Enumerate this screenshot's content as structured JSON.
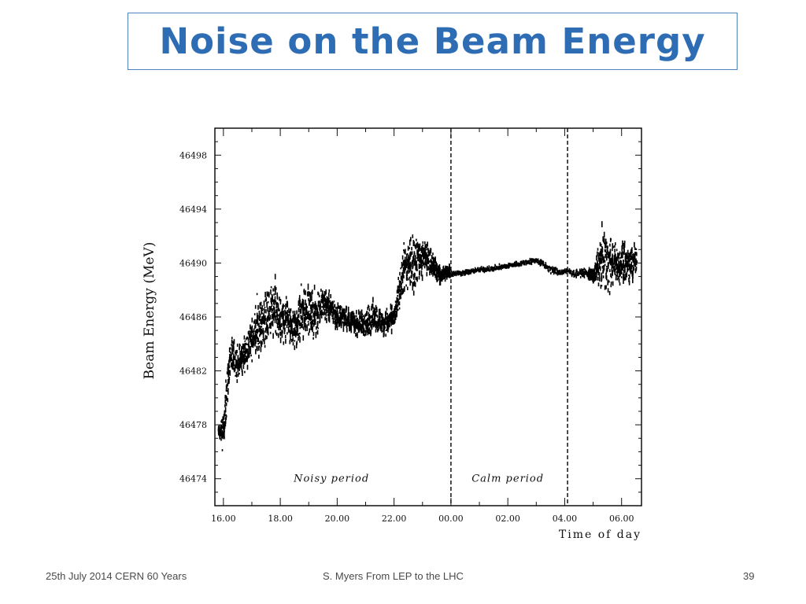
{
  "slide": {
    "title": "Noise on the Beam Energy",
    "footer_left": "25th July 2014 CERN 60 Years",
    "footer_center": "S. Myers From LEP to the LHC",
    "slide_number": "39",
    "title_color": "#2e6db4",
    "title_border_color": "#4f81bd"
  },
  "chart_data": {
    "type": "scatter",
    "title": "",
    "xlabel": "Time of day",
    "ylabel": "Beam Energy (MeV)",
    "x_tick_labels": [
      "16.00",
      "18.00",
      "20.00",
      "22.00",
      "00.00",
      "02.00",
      "04.00",
      "06.00"
    ],
    "y_tick_labels": [
      "46474",
      "46478",
      "46482",
      "46486",
      "46490",
      "46494",
      "46498"
    ],
    "y_ticks": [
      46474,
      46478,
      46482,
      46486,
      46490,
      46494,
      46498
    ],
    "ylim": [
      46472,
      46500
    ],
    "xlim_hours": [
      15.7,
      30.7
    ],
    "grid": false,
    "annotations": [
      {
        "label": "Noisy period",
        "x_hours": 19.8,
        "y": 46474
      },
      {
        "label": "Calm period",
        "x_hours": 26.0,
        "y": 46474
      }
    ],
    "period_boundaries_hours": [
      24.0,
      28.1
    ],
    "series": [
      {
        "x_hours": [
          15.8,
          16.0,
          16.2,
          16.5,
          16.8,
          17.0,
          17.2,
          17.5,
          17.8,
          18.0,
          18.2,
          18.5,
          18.8,
          19.0,
          19.2,
          19.5,
          19.8,
          20.0,
          20.3,
          20.6,
          21.0,
          21.3,
          21.6,
          22.0,
          22.3,
          22.6,
          23.0,
          23.3,
          23.6,
          23.9,
          24.0,
          24.5,
          25.0,
          25.5,
          26.0,
          26.5,
          27.0,
          27.5,
          27.8,
          28.1,
          28.3,
          28.6,
          29.0,
          29.3,
          29.6,
          29.9,
          30.2,
          30.5
        ],
        "y": [
          46477.5,
          46477.5,
          46483.0,
          46482.5,
          46483.5,
          46484.5,
          46485.0,
          46486.0,
          46486.5,
          46485.5,
          46486.0,
          46485.0,
          46486.5,
          46486.5,
          46486.0,
          46487.0,
          46486.5,
          46486.0,
          46486.0,
          46485.5,
          46485.5,
          46486.0,
          46485.5,
          46486.0,
          46489.5,
          46490.0,
          46490.5,
          46490.0,
          46489.0,
          46489.5,
          46489.2,
          46489.3,
          46489.5,
          46489.6,
          46489.8,
          46490.0,
          46490.2,
          46489.5,
          46489.3,
          46489.4,
          46489.2,
          46489.3,
          46489.0,
          46490.5,
          46490.0,
          46489.8,
          46490.0,
          46490.2
        ],
        "spread": [
          0.5,
          2.5,
          2.0,
          1.8,
          1.5,
          2.0,
          3.5,
          2.5,
          3.5,
          2.0,
          2.5,
          2.0,
          3.0,
          2.0,
          2.5,
          1.5,
          1.5,
          1.2,
          1.2,
          1.0,
          1.5,
          1.5,
          1.2,
          1.0,
          2.5,
          3.0,
          2.0,
          1.5,
          0.8,
          0.8,
          0.3,
          0.25,
          0.25,
          0.25,
          0.25,
          0.25,
          0.3,
          0.4,
          0.3,
          0.3,
          0.3,
          0.4,
          0.6,
          3.0,
          2.5,
          2.0,
          1.8,
          1.5
        ]
      }
    ]
  }
}
